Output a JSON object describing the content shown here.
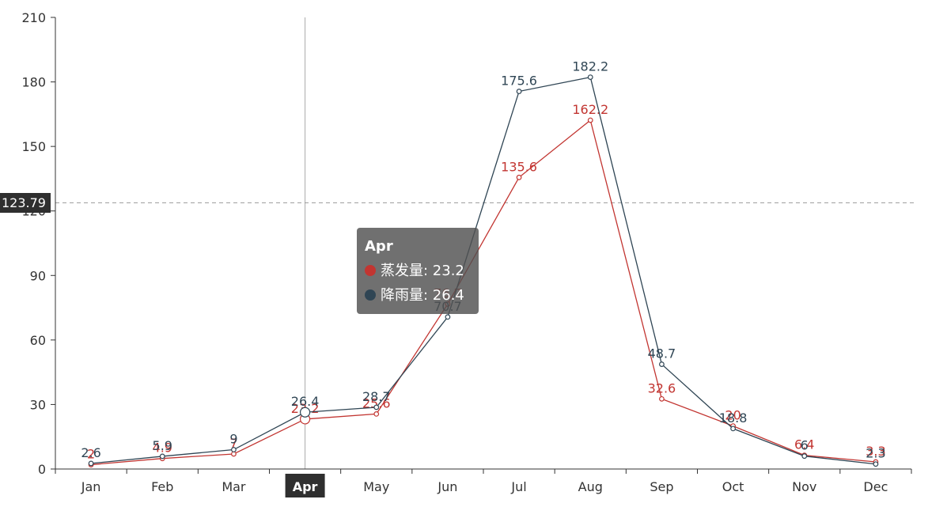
{
  "chart_data": {
    "type": "line",
    "categories": [
      "Jan",
      "Feb",
      "Mar",
      "Apr",
      "May",
      "Jun",
      "Jul",
      "Aug",
      "Sep",
      "Oct",
      "Nov",
      "Dec"
    ],
    "series": [
      {
        "name": "蒸发量",
        "color": "#c23531",
        "values": [
          2.0,
          4.9,
          7.0,
          23.2,
          25.6,
          76.7,
          135.6,
          162.2,
          32.6,
          20.0,
          6.4,
          3.3
        ]
      },
      {
        "name": "降雨量",
        "color": "#2f4554",
        "values": [
          2.6,
          5.9,
          9.0,
          26.4,
          28.7,
          70.7,
          175.6,
          182.2,
          48.7,
          18.8,
          6.0,
          2.3
        ]
      }
    ],
    "ylim": [
      0,
      210
    ],
    "yticks": [
      0,
      30,
      60,
      90,
      120,
      150,
      180,
      210
    ],
    "grid": false,
    "axis_pointer": {
      "category": "Apr",
      "y_value_label": "123.79"
    }
  },
  "tooltip": {
    "title": "Apr",
    "rows": [
      {
        "label": "蒸发量: 23.2",
        "color": "#c23531"
      },
      {
        "label": "降雨量: 26.4",
        "color": "#2f4554"
      }
    ]
  }
}
